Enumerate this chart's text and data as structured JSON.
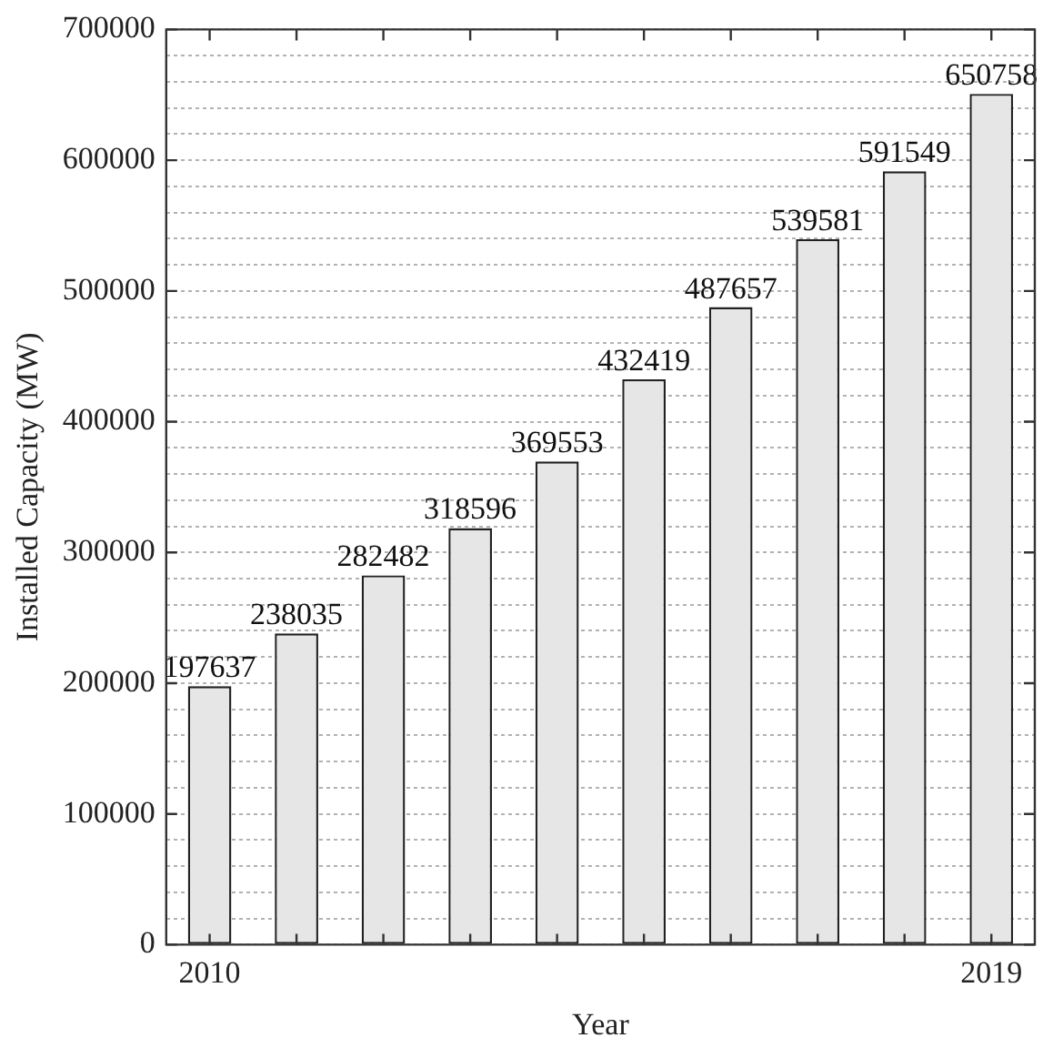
{
  "chart_data": {
    "type": "bar",
    "xlabel": "Year",
    "ylabel": "Installed Capacity (MW)",
    "categories": [
      "2010",
      null,
      null,
      null,
      null,
      null,
      null,
      null,
      null,
      "2019"
    ],
    "values": [
      197637,
      238035,
      282482,
      318596,
      369553,
      432419,
      487657,
      539581,
      591549,
      650758
    ],
    "color": "#e6e6e6",
    "data_labels": true,
    "grid": "y",
    "legend": false,
    "ylim": [
      0,
      700000
    ],
    "yticks": [
      0,
      {
        "value": 20000,
        "label": null
      },
      {
        "value": 40000,
        "label": null
      },
      {
        "value": 60000,
        "label": null
      },
      {
        "value": 80000,
        "label": null
      },
      100000,
      {
        "value": 120000,
        "label": null
      },
      {
        "value": 140000,
        "label": null
      },
      {
        "value": 160000,
        "label": null
      },
      {
        "value": 180000,
        "label": null
      },
      200000,
      {
        "value": 220000,
        "label": null
      },
      {
        "value": 240000,
        "label": null
      },
      {
        "value": 260000,
        "label": null
      },
      {
        "value": 280000,
        "label": null
      },
      300000,
      {
        "value": 320000,
        "label": null
      },
      {
        "value": 340000,
        "label": null
      },
      {
        "value": 360000,
        "label": null
      },
      {
        "value": 380000,
        "label": null
      },
      400000,
      {
        "value": 420000,
        "label": null
      },
      {
        "value": 440000,
        "label": null
      },
      {
        "value": 460000,
        "label": null
      },
      {
        "value": 480000,
        "label": null
      },
      500000,
      {
        "value": 520000,
        "label": null
      },
      {
        "value": 540000,
        "label": null
      },
      {
        "value": 560000,
        "label": null
      },
      {
        "value": 580000,
        "label": null
      },
      600000,
      {
        "value": 620000,
        "label": null
      },
      {
        "value": 640000,
        "label": null
      },
      {
        "value": 660000,
        "label": null
      },
      {
        "value": 680000,
        "label": null
      },
      700000
    ]
  }
}
